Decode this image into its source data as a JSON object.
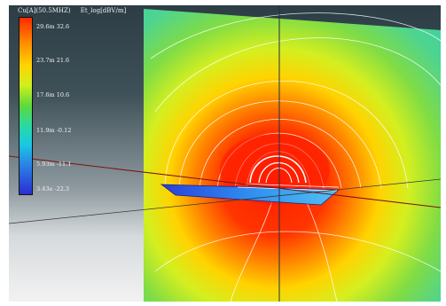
{
  "legend": {
    "title_left": "Cu[A](50.5MHZ)",
    "title_right": "Et_log[dBV/m]",
    "labels": [
      "29.6m 32.6",
      "23.7m 21.6",
      "17.6m 10.6",
      "11.9m -0.12",
      "5.93m -11.1",
      "3.43e -22.3"
    ]
  },
  "colors": {
    "field_high": "#ff2a00",
    "field_mid": "#ffd400",
    "field_low": "#27c9b8",
    "board": "#2a6fe8",
    "background_top": "#2c3d45"
  },
  "icons": [
    "antenna-loop-icon",
    "pcb-board-icon"
  ]
}
